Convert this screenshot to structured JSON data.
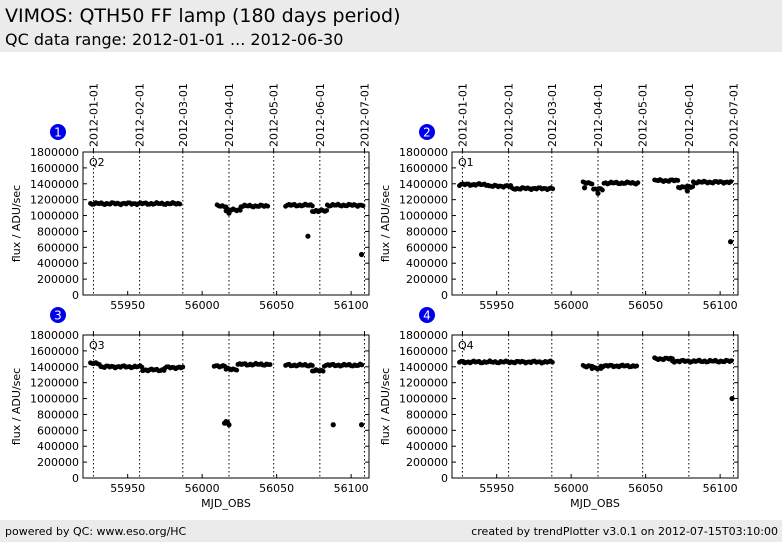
{
  "page": {
    "title": "VIMOS: QTH50 FF lamp (180 days period)",
    "subtitle": "QC data range: 2012-01-01 ... 2012-06-30"
  },
  "footer": {
    "left": "powered by QC: www.eso.org/HC",
    "right": "created by trendPlotter v3.0.1 on 2012-07-15T03:10:00"
  },
  "colors": {
    "marker": "#000000",
    "badge": "#0000ee",
    "header_bg": "#ebebeb"
  },
  "chart_data": [
    {
      "type": "scatter",
      "badge": "1",
      "panel_label": "Q2",
      "xlabel": "",
      "ylabel": "flux / ADU/sec",
      "xlim": [
        55920,
        56112
      ],
      "ylim": [
        0,
        1800000
      ],
      "x_ticks": [
        55950,
        56000,
        56050,
        56100
      ],
      "y_ticks": [
        0,
        200000,
        400000,
        600000,
        800000,
        1000000,
        1200000,
        1400000,
        1600000,
        1800000
      ],
      "date_ticks": [
        "2012-01-01",
        "2012-02-01",
        "2012-03-01",
        "2012-04-01",
        "2012-05-01",
        "2012-06-01",
        "2012-07-01"
      ],
      "date_mjd": [
        55927,
        55958,
        55987,
        56018,
        56048,
        56079,
        56109
      ],
      "segments": [
        {
          "x0": 55925,
          "x1": 55986,
          "y": 1150000,
          "step": 1.2
        },
        {
          "x0": 56010,
          "x1": 56016,
          "y": 1120000,
          "step": 1.2
        },
        {
          "x0": 56016,
          "x1": 56026,
          "y": 1070000,
          "step": 1.2
        },
        {
          "x0": 56026,
          "x1": 56045,
          "y": 1120000,
          "step": 1.2
        },
        {
          "x0": 56056,
          "x1": 56074,
          "y": 1130000,
          "step": 1.2
        },
        {
          "x0": 56074,
          "x1": 56084,
          "y": 1060000,
          "step": 1.2
        },
        {
          "x0": 56084,
          "x1": 56108,
          "y": 1130000,
          "step": 1.2
        }
      ],
      "points": [
        [
          56071,
          740000
        ],
        [
          56107,
          510000
        ],
        [
          56018,
          1030000
        ],
        [
          56078,
          1050000
        ]
      ]
    },
    {
      "type": "scatter",
      "badge": "2",
      "panel_label": "Q1",
      "xlabel": "",
      "ylabel": "flux / ADU/sec",
      "xlim": [
        55920,
        56112
      ],
      "ylim": [
        0,
        1800000
      ],
      "x_ticks": [
        55950,
        56000,
        56050,
        56100
      ],
      "y_ticks": [
        0,
        200000,
        400000,
        600000,
        800000,
        1000000,
        1200000,
        1400000,
        1600000,
        1800000
      ],
      "date_ticks": [
        "2012-01-01",
        "2012-02-01",
        "2012-03-01",
        "2012-04-01",
        "2012-05-01",
        "2012-06-01",
        "2012-07-01"
      ],
      "date_mjd": [
        55927,
        55958,
        55987,
        56018,
        56048,
        56079,
        56109
      ],
      "segments": [
        {
          "x0": 55925,
          "x1": 55945,
          "y": 1390000,
          "step": 1.2
        },
        {
          "x0": 55945,
          "x1": 55960,
          "y": 1370000,
          "step": 1.2
        },
        {
          "x0": 55960,
          "x1": 55988,
          "y": 1340000,
          "step": 1.2
        },
        {
          "x0": 56008,
          "x1": 56015,
          "y": 1410000,
          "step": 1.2
        },
        {
          "x0": 56015,
          "x1": 56022,
          "y": 1330000,
          "step": 1.2
        },
        {
          "x0": 56022,
          "x1": 56045,
          "y": 1410000,
          "step": 1.2
        },
        {
          "x0": 56056,
          "x1": 56072,
          "y": 1440000,
          "step": 1.2
        },
        {
          "x0": 56072,
          "x1": 56082,
          "y": 1360000,
          "step": 1.2
        },
        {
          "x0": 56082,
          "x1": 56108,
          "y": 1420000,
          "step": 1.2
        }
      ],
      "points": [
        [
          56107,
          670000
        ],
        [
          56009,
          1350000
        ],
        [
          56018,
          1280000
        ],
        [
          56078,
          1310000
        ]
      ]
    },
    {
      "type": "scatter",
      "badge": "3",
      "panel_label": "Q3",
      "xlabel": "MJD_OBS",
      "ylabel": "flux / ADU/sec",
      "xlim": [
        55920,
        56112
      ],
      "ylim": [
        0,
        1800000
      ],
      "x_ticks": [
        55950,
        56000,
        56050,
        56100
      ],
      "y_ticks": [
        0,
        200000,
        400000,
        600000,
        800000,
        1000000,
        1200000,
        1400000,
        1600000,
        1800000
      ],
      "date_ticks": [],
      "date_mjd": [
        55927,
        55958,
        55987,
        56018,
        56048,
        56079,
        56109
      ],
      "segments": [
        {
          "x0": 55925,
          "x1": 55932,
          "y": 1440000,
          "step": 1.2
        },
        {
          "x0": 55932,
          "x1": 55960,
          "y": 1400000,
          "step": 1.2
        },
        {
          "x0": 55960,
          "x1": 55975,
          "y": 1360000,
          "step": 1.2
        },
        {
          "x0": 55975,
          "x1": 55988,
          "y": 1390000,
          "step": 1.2
        },
        {
          "x0": 56008,
          "x1": 56016,
          "y": 1410000,
          "step": 1.2
        },
        {
          "x0": 56016,
          "x1": 56024,
          "y": 1370000,
          "step": 1.2
        },
        {
          "x0": 56024,
          "x1": 56046,
          "y": 1430000,
          "step": 1.2
        },
        {
          "x0": 56056,
          "x1": 56074,
          "y": 1420000,
          "step": 1.2
        },
        {
          "x0": 56074,
          "x1": 56082,
          "y": 1350000,
          "step": 1.2
        },
        {
          "x0": 56082,
          "x1": 56108,
          "y": 1420000,
          "step": 1.2
        }
      ],
      "points": [
        [
          56015,
          690000
        ],
        [
          56017,
          700000
        ],
        [
          56018,
          670000
        ],
        [
          56016,
          710000
        ],
        [
          56088,
          670000
        ],
        [
          56107,
          670000
        ]
      ]
    },
    {
      "type": "scatter",
      "badge": "4",
      "panel_label": "Q4",
      "xlabel": "MJD_OBS",
      "ylabel": "flux / ADU/sec",
      "xlim": [
        55920,
        56112
      ],
      "ylim": [
        0,
        1800000
      ],
      "x_ticks": [
        55950,
        56000,
        56050,
        56100
      ],
      "y_ticks": [
        0,
        200000,
        400000,
        600000,
        800000,
        1000000,
        1200000,
        1400000,
        1600000,
        1800000
      ],
      "date_ticks": [],
      "date_mjd": [
        55927,
        55958,
        55987,
        56018,
        56048,
        56079,
        56109
      ],
      "segments": [
        {
          "x0": 55925,
          "x1": 55988,
          "y": 1460000,
          "step": 1.2
        },
        {
          "x0": 56008,
          "x1": 56014,
          "y": 1410000,
          "step": 1.2
        },
        {
          "x0": 56014,
          "x1": 56020,
          "y": 1380000,
          "step": 1.2
        },
        {
          "x0": 56020,
          "x1": 56045,
          "y": 1410000,
          "step": 1.2
        },
        {
          "x0": 56056,
          "x1": 56068,
          "y": 1500000,
          "step": 1.2
        },
        {
          "x0": 56068,
          "x1": 56108,
          "y": 1470000,
          "step": 1.2
        }
      ],
      "points": [
        [
          56108,
          1000000
        ]
      ]
    }
  ]
}
